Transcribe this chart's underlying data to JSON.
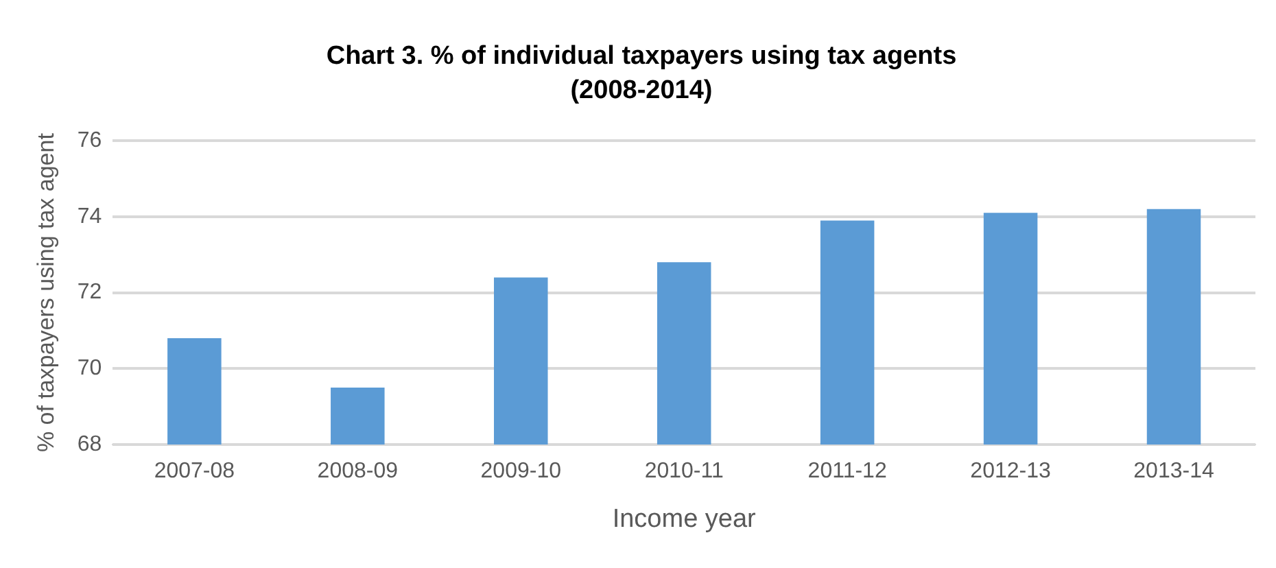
{
  "chart_data": {
    "type": "bar",
    "title": "Chart 3. % of individual taxpayers using tax agents",
    "subtitle": "(2008-2014)",
    "xlabel": "Income year",
    "ylabel": "% of taxpayers using tax agent",
    "categories": [
      "2007-08",
      "2008-09",
      "2009-10",
      "2010-11",
      "2011-12",
      "2012-13",
      "2013-14"
    ],
    "values": [
      70.8,
      69.5,
      72.4,
      72.8,
      73.9,
      74.1,
      74.2
    ],
    "color": "#5b9bd5",
    "ylim": [
      68,
      76
    ],
    "yticks": [
      68,
      70,
      72,
      74,
      76
    ],
    "grid": "y",
    "legend": false
  }
}
